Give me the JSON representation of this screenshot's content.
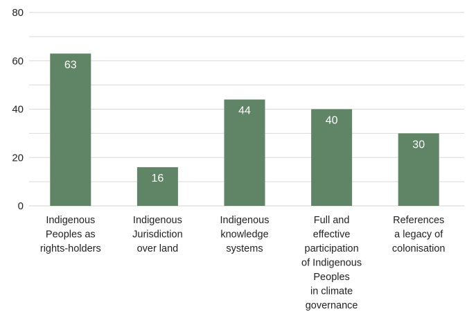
{
  "chart_data": {
    "type": "bar",
    "title": "",
    "xlabel": "",
    "ylabel": "",
    "ylim": [
      0,
      80
    ],
    "yticks": [
      0,
      20,
      40,
      60,
      80
    ],
    "grid": "horizontal, every 10 units",
    "categories": [
      [
        "Indigenous",
        "Peoples as",
        "rights-holders"
      ],
      [
        "Indigenous",
        "Jurisdiction",
        "over land"
      ],
      [
        "Indigenous",
        "knowledge",
        "systems"
      ],
      [
        "Full and",
        "effective",
        "participation",
        "of Indigenous",
        "Peoples",
        "in climate",
        "governance"
      ],
      [
        "References",
        "a legacy of",
        "colonisation"
      ]
    ],
    "values": [
      63,
      16,
      44,
      40,
      30
    ],
    "data_labels": [
      "63",
      "16",
      "44",
      "40",
      "30"
    ],
    "colors": {
      "bar": "#5f8566",
      "grid": "#d9d9d9",
      "label": "#ffffff",
      "text": "#222222"
    }
  }
}
